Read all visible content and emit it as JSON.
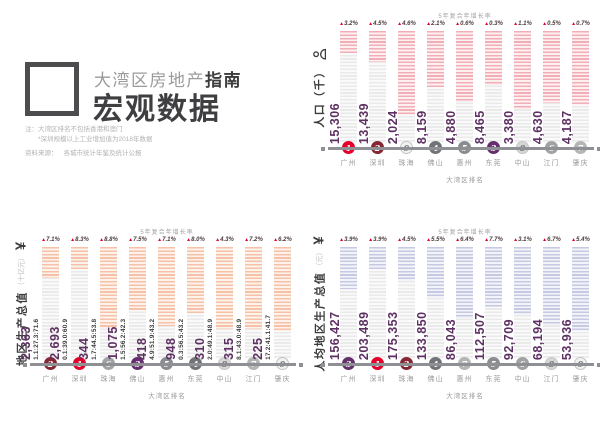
{
  "header": {
    "subtitle_light": "大湾区房地产",
    "subtitle_dark": "指南",
    "title": "宏观数据",
    "note_label": "注：",
    "note_line1": "大湾区排名不包括香港和澳门",
    "note_line2": "*深圳规模以上工业增加值为2018年数据",
    "source_label": "资料来源：",
    "source_text": "各城市统计年鉴及统计公报"
  },
  "cities": [
    "广州",
    "深圳",
    "珠海",
    "佛山",
    "惠州",
    "东莞",
    "中山",
    "江门",
    "肇庆"
  ],
  "colors": {
    "accent_red": "#e4002b",
    "value_purple": "#5e3163",
    "axis_gray": "#8f9093",
    "rank_badges": {
      "1": "#e4002b",
      "2": "#862633",
      "3": "#642f6c",
      "4": "#717477",
      "5": "#8a8d8f",
      "6": "#a0a2a4",
      "7": "#b4b6b6",
      "8": "#d7d7d5",
      "9": "#f1f1f0"
    }
  },
  "chart_data": [
    {
      "type": "bar",
      "name": "population",
      "title": "5年复合年增长率",
      "ylabel": "人口（千）",
      "ylabel_unit": "",
      "ylabel_icon": "person-icon",
      "xlabel": "大湾区排名",
      "categories": [
        "广州",
        "深圳",
        "珠海",
        "佛山",
        "惠州",
        "东莞",
        "中山",
        "江门",
        "肇庆"
      ],
      "values": [
        15306,
        13439,
        2024,
        8159,
        4880,
        8465,
        3380,
        4630,
        4187
      ],
      "values_display": [
        "15,306",
        "13,439",
        "2,024",
        "8,159",
        "4,880",
        "8,465",
        "3,380",
        "4,630",
        "4,187"
      ],
      "growth": [
        "3.2%",
        "4.5%",
        "4.6%",
        "2.1%",
        "0.6%",
        "0.3%",
        "1.1%",
        "0.5%",
        "0.7%"
      ],
      "ranks": [
        1,
        2,
        9,
        4,
        5,
        3,
        8,
        6,
        7
      ],
      "stripe_fill": "#f2aeb7",
      "stripe_fill_bg": "#fcf0f1",
      "stripe_faint": "#eaeaea",
      "stripe_faint_bg": "#fafafa"
    },
    {
      "type": "bar",
      "name": "gdp",
      "title": "5年复合年增长率",
      "ylabel": "地区生产总值",
      "ylabel_unit": "（十亿元）",
      "ylabel_icon": "yuan-icon",
      "xlabel": "大湾区排名",
      "categories": [
        "广州",
        "深圳",
        "珠海",
        "佛山",
        "惠州",
        "东莞",
        "中山",
        "江门",
        "肇庆"
      ],
      "values": [
        2363,
        2693,
        344,
        1075,
        418,
        948,
        310,
        315,
        225
      ],
      "values_display": [
        "2,363",
        "2,693",
        "344",
        "1,075",
        "418",
        "948",
        "310",
        "315",
        "225"
      ],
      "composition": [
        "1.1:27.3:71.6",
        "0.1:39.0:60.9",
        "1.7:44.5:53.8",
        "1.5:56.2:42.3",
        "4.9:51.9:43.2",
        "0.3:56.5:43.2",
        "2.0:49.1:48.9",
        "8.1:43.0:48.9",
        "17.2:41.1:41.7"
      ],
      "growth": [
        "7.1%",
        "8.3%",
        "8.8%",
        "7.5%",
        "7.1%",
        "8.0%",
        "4.3%",
        "7.2%",
        "6.2%"
      ],
      "ranks": [
        2,
        1,
        6,
        3,
        5,
        4,
        8,
        7,
        9
      ],
      "stripe_fill": "#f6c1a7",
      "stripe_fill_bg": "#fdf3ed",
      "stripe_faint": "#eaeaea",
      "stripe_faint_bg": "#fafafa"
    },
    {
      "type": "bar",
      "name": "gdp_per_capita",
      "title": "5年复合年增长率",
      "ylabel": "人均地区生产总值",
      "ylabel_unit": "（元）",
      "ylabel_icon": "yuan-icon",
      "xlabel": "大湾区排名",
      "categories": [
        "广州",
        "深圳",
        "珠海",
        "佛山",
        "惠州",
        "东莞",
        "中山",
        "江门",
        "肇庆"
      ],
      "values": [
        156427,
        203489,
        175353,
        133850,
        86043,
        112507,
        92709,
        68194,
        53936
      ],
      "values_display": [
        "156,427",
        "203,489",
        "175,353",
        "133,850",
        "86,043",
        "112,507",
        "92,709",
        "68,194",
        "53,936"
      ],
      "growth": [
        "3.9%",
        "3.9%",
        "4.5%",
        "5.5%",
        "6.4%",
        "7.7%",
        "3.1%",
        "6.7%",
        "5.4%"
      ],
      "ranks": [
        3,
        1,
        2,
        4,
        7,
        5,
        6,
        8,
        9
      ],
      "stripe_fill": "#c7c9e3",
      "stripe_fill_bg": "#f3f3fa",
      "stripe_faint": "#eaeaea",
      "stripe_faint_bg": "#fafafa"
    }
  ]
}
